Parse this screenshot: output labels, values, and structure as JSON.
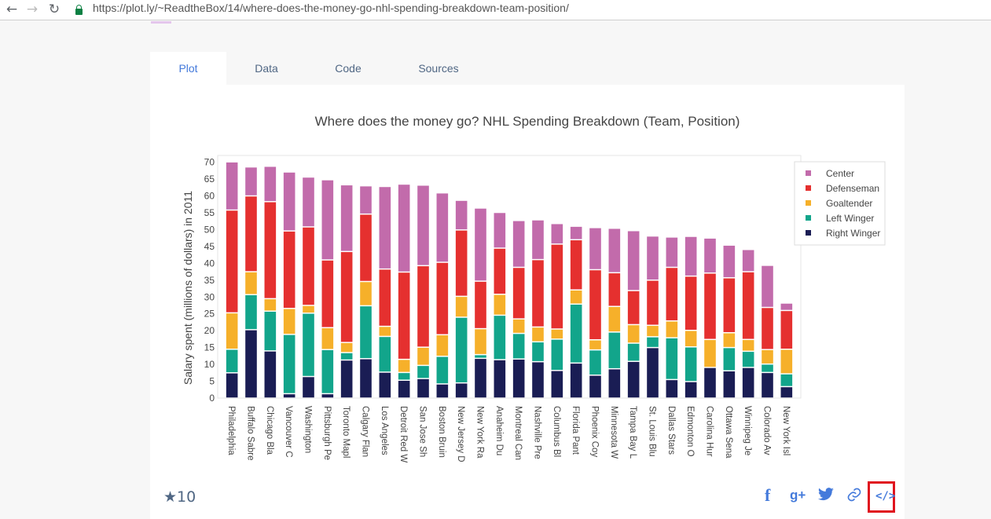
{
  "browser": {
    "url": "https://plot.ly/~ReadtheBox/14/where-does-the-money-go-nhl-spending-breakdown-team-position/",
    "back_glyph": "←",
    "forward_glyph": "→",
    "reload_glyph": "↻"
  },
  "tabs": [
    {
      "label": "Plot",
      "active": true
    },
    {
      "label": "Data",
      "active": false
    },
    {
      "label": "Code",
      "active": false
    },
    {
      "label": "Sources",
      "active": false
    }
  ],
  "footer": {
    "stars": "★10",
    "share_icons": [
      "facebook-icon",
      "google-plus-icon",
      "twitter-icon",
      "link-icon",
      "embed-code-icon"
    ],
    "facebook_glyph": "f",
    "google_plus_glyph": "g+",
    "embed_glyph": "</>"
  },
  "colors": {
    "Center": "#c26bab",
    "Defenseman": "#e5302f",
    "Goaltender": "#f6b02a",
    "Left Winger": "#12a58b",
    "Right Winger": "#1a1d54",
    "accent": "#447adb",
    "highlight": "#e0141e"
  },
  "chart_data": {
    "type": "bar",
    "stacked": true,
    "title": "Where does the money go?  NHL Spending Breakdown (Team, Position)",
    "ylabel": "Salary spent (millions of dollars) in 2011",
    "xlabel": "",
    "ylim": [
      0,
      72
    ],
    "yticks": [
      0,
      5,
      10,
      15,
      20,
      25,
      30,
      35,
      40,
      45,
      50,
      55,
      60,
      65,
      70
    ],
    "legend_position": "top-right",
    "categories": [
      "Philadelphia",
      "Buffalo Sabre",
      "Chicago Bla",
      "Vancouver C",
      "Washington",
      "Pittsburgh Pe",
      "Toronto Mapl",
      "Calgary Flan",
      "Los Angeles",
      "Detroit Red W",
      "San Jose Sh",
      "Boston Bruin",
      "New Jersey D",
      "New York Ra",
      "Anaheim Du",
      "Montreal Can",
      "Nashville Pre",
      "Columbus Bl",
      "Florida Pant",
      "Phoenix Coy",
      "Minnesota W",
      "Tampa Bay L",
      "St. Louis Blu",
      "Dallas Stars",
      "Edmonton O",
      "Carolina Hur",
      "Ottawa Sena",
      "Winnipeg Je",
      "Colorado Av",
      "New York Isl"
    ],
    "series": [
      {
        "name": "Right Winger",
        "values": [
          7.5,
          20.3,
          14,
          1.3,
          6.4,
          1.3,
          11.3,
          11.7,
          7.7,
          5.3,
          5.8,
          4.2,
          4.5,
          11.8,
          11.4,
          11.6,
          10.8,
          8.2,
          10.4,
          6.8,
          8.7,
          10.9,
          15,
          5.5,
          4.9,
          9.1,
          8.1,
          9.1,
          7.6,
          3.4
        ]
      },
      {
        "name": "Left Winger",
        "values": [
          7.0,
          10.4,
          11.8,
          17.6,
          18.8,
          13.1,
          2.2,
          15.7,
          10.6,
          2.3,
          3.9,
          8.2,
          19.5,
          1.1,
          13.2,
          7.6,
          5.9,
          9.3,
          17.5,
          7.5,
          10.9,
          5.4,
          3.2,
          12.4,
          10.3,
          0,
          6.9,
          4.8,
          2.5,
          3.8
        ]
      },
      {
        "name": "Goaltender",
        "values": [
          10.8,
          6.8,
          3.7,
          7.7,
          2.3,
          6.5,
          3.0,
          7.2,
          3.0,
          3.9,
          5.4,
          6.4,
          6.2,
          7.7,
          6.2,
          4.3,
          4.4,
          3.0,
          4.2,
          3.0,
          7.6,
          5.5,
          3.4,
          5.0,
          4.9,
          8.3,
          4.4,
          3.5,
          4.3,
          7.3
        ]
      },
      {
        "name": "Defenseman",
        "values": [
          30.5,
          22.5,
          28.8,
          23,
          23.3,
          20.1,
          27,
          20,
          17,
          25.9,
          24.2,
          21.5,
          19.7,
          14.1,
          13.7,
          15.3,
          20,
          25.2,
          14.9,
          20.8,
          10,
          10.1,
          13.4,
          15.9,
          16.1,
          19.7,
          16.3,
          20.1,
          12.5,
          11.5
        ]
      },
      {
        "name": "Center",
        "values": [
          14.3,
          8.6,
          10.5,
          17.5,
          14.8,
          23.8,
          19.8,
          8.4,
          24.5,
          26.1,
          23.9,
          20.6,
          8.8,
          21.7,
          10.6,
          13.9,
          11.8,
          6.1,
          4.0,
          12.5,
          13.2,
          17.8,
          13.1,
          9.0,
          11.8,
          10.4,
          9.7,
          6.6,
          12.5,
          2.2
        ]
      }
    ],
    "legend_order": [
      "Center",
      "Defenseman",
      "Goaltender",
      "Left Winger",
      "Right Winger"
    ]
  }
}
